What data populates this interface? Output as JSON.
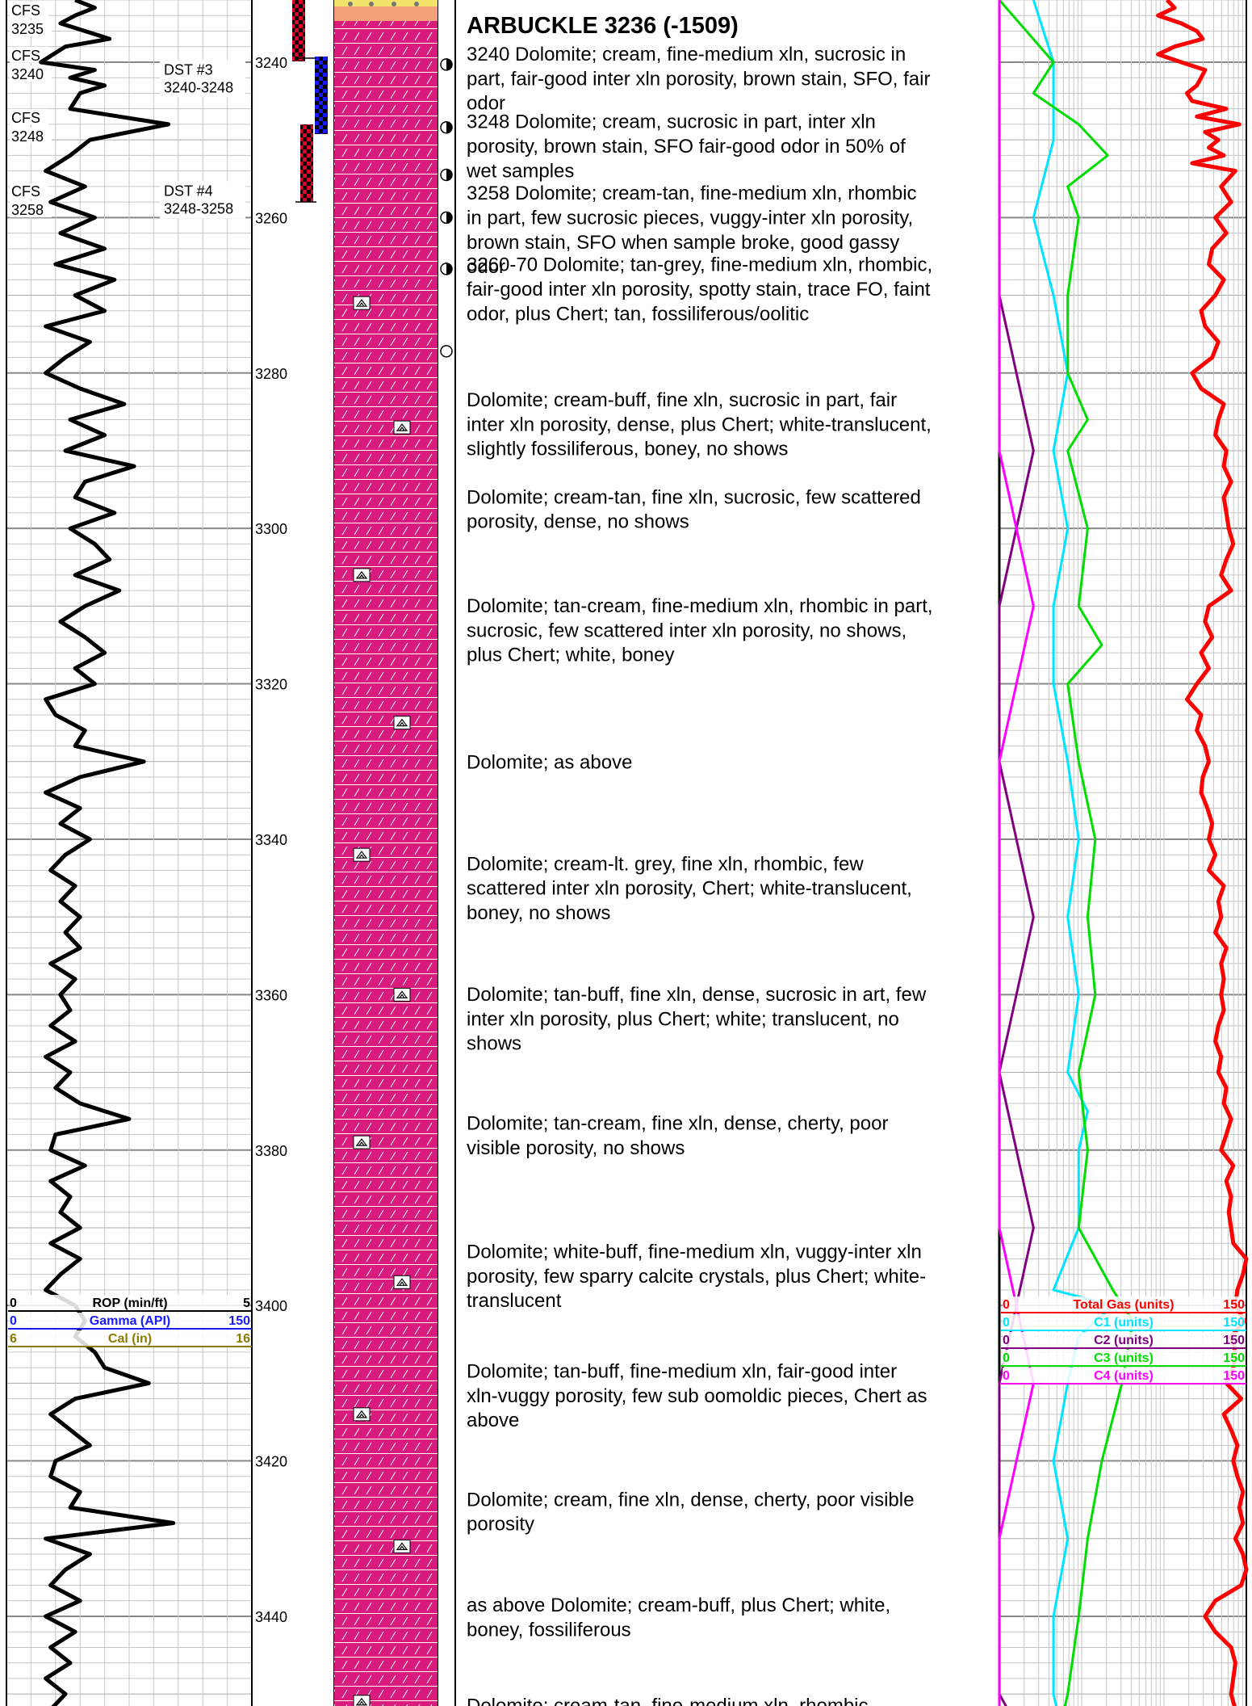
{
  "chart_data": {
    "type": "line",
    "depth_range": [
      3232,
      3458
    ],
    "depth_labels": [
      3240,
      3260,
      3280,
      3300,
      3320,
      3340,
      3360,
      3380,
      3400,
      3420,
      3440
    ],
    "samples": [
      {
        "text": "CFS\n3235",
        "depth": 3234.5
      },
      {
        "text": "CFS\n3240",
        "depth": 3240.3
      },
      {
        "text": "CFS\n3248",
        "depth": 3248.3
      },
      {
        "text": "CFS\n3258",
        "depth": 3257.8
      }
    ],
    "dst": [
      {
        "text": "DST #3\n3240-3248",
        "depth": 3241.8
      },
      {
        "text": "DST #4\n3248-3258",
        "depth": 3257.4
      }
    ],
    "formation": {
      "text": "ARBUCKLE 3236 (-1509)",
      "depth": 3235.2
    },
    "descriptions": [
      {
        "depth": 3239.8,
        "lines": [
          "3240 Dolomite; cream, fine-medium xln, sucrosic in",
          "part, fair-good inter xln porosity, brown stain, SFO, fair",
          "odor"
        ]
      },
      {
        "depth": 3248.5,
        "lines": [
          "3248 Dolomite; cream, sucrosic in part, inter xln",
          "porosity, brown stain, SFO fair-good odor in 50% of",
          "wet samples"
        ]
      },
      {
        "depth": 3257.7,
        "lines": [
          "3258 Dolomite; cream-tan, fine-medium xln, rhombic",
          "in part, few sucrosic pieces, vuggy-inter xln porosity,",
          "brown stain, SFO when sample broke, good gassy",
          "odor"
        ]
      },
      {
        "depth": 3266.9,
        "lines": [
          "3260-70 Dolomite; tan-grey, fine-medium xln, rhombic,",
          "fair-good inter xln porosity, spotty stain, trace FO, faint",
          "odor, plus Chert; tan, fossiliferous/oolitic"
        ]
      },
      {
        "depth": 3284.3,
        "lines": [
          "Dolomite; cream-buff, fine xln, sucrosic in part, fair",
          "inter xln porosity, dense, plus Chert; white-translucent,",
          "slightly fossiliferous, boney, no shows"
        ]
      },
      {
        "depth": 3296.8,
        "lines": [
          "Dolomite; cream-tan, fine xln, sucrosic, few scattered",
          "porosity, dense, no shows"
        ]
      },
      {
        "depth": 3310.8,
        "lines": [
          "Dolomite; tan-cream, fine-medium xln, rhombic in part,",
          "sucrosic, few scattered inter xln porosity, no shows,",
          "plus Chert; white, boney"
        ]
      },
      {
        "depth": 3330.9,
        "lines": [
          "Dolomite; as above"
        ]
      },
      {
        "depth": 3344.0,
        "lines": [
          "Dolomite; cream-lt. grey, fine xln, rhombic, few",
          "scattered inter xln porosity, Chert; white-translucent,",
          "boney, no shows"
        ]
      },
      {
        "depth": 3360.8,
        "lines": [
          "Dolomite; tan-buff, fine xln, dense, sucrosic in art, few",
          "inter xln porosity, plus Chert; white; translucent, no",
          "shows"
        ]
      },
      {
        "depth": 3377.4,
        "lines": [
          "Dolomite; tan-cream, fine xln, dense, cherty, poor",
          "visible porosity, no shows"
        ]
      },
      {
        "depth": 3393.9,
        "lines": [
          "Dolomite; white-buff, fine-medium xln, vuggy-inter xln",
          "porosity, few sparry calcite crystals, plus Chert; white-",
          "translucent"
        ]
      },
      {
        "depth": 3409.3,
        "lines": [
          "Dolomite; tan-buff, fine-medium xln, fair-good inter",
          "xln-vuggy porosity, few sub oomoldic pieces, Chert as",
          "above"
        ]
      },
      {
        "depth": 3425.8,
        "lines": [
          "Dolomite; cream, fine xln, dense, cherty, poor visible",
          "porosity"
        ]
      },
      {
        "depth": 3439.4,
        "lines": [
          "as above Dolomite; cream-buff, plus Chert; white,",
          "boney, fossiliferous"
        ]
      },
      {
        "depth": 3452.3,
        "lines": [
          "Dolomite; cream-tan, fine-medium xln, rhombic"
        ]
      }
    ],
    "left_legend": [
      {
        "min": "0",
        "name": "ROP (min/ft)",
        "max": "5",
        "color": "#000000"
      },
      {
        "min": "0",
        "name": "Gamma (API)",
        "max": "150",
        "color": "#1a1aff"
      },
      {
        "min": "6",
        "name": "Cal (in)",
        "max": "16",
        "color": "#8a7a00"
      }
    ],
    "right_legend": [
      {
        "min": "0",
        "name": "Total Gas (units)",
        "max": "150",
        "color": "#ff0000"
      },
      {
        "min": "0",
        "name": "C1 (units)",
        "max": "150",
        "color": "#00e5ff"
      },
      {
        "min": "0",
        "name": "C2 (units)",
        "max": "150",
        "color": "#800080"
      },
      {
        "min": "0",
        "name": "C3 (units)",
        "max": "150",
        "color": "#00dd00"
      },
      {
        "min": "0",
        "name": "C4 (units)",
        "max": "150",
        "color": "#ff00ff"
      }
    ],
    "series": [
      {
        "name": "ROP (min/ft)",
        "color": "#000000",
        "xlim": [
          0,
          5
        ],
        "depth": [
          3232,
          3233,
          3234,
          3235,
          3237,
          3238,
          3240,
          3241,
          3242,
          3243,
          3244,
          3246,
          3247,
          3248,
          3250,
          3252,
          3254,
          3256,
          3258,
          3260,
          3262,
          3264,
          3266,
          3268,
          3270,
          3272,
          3274,
          3276,
          3278,
          3280,
          3282,
          3284,
          3286,
          3288,
          3290,
          3292,
          3294,
          3296,
          3298,
          3300,
          3302,
          3304,
          3306,
          3308,
          3310,
          3312,
          3314,
          3316,
          3318,
          3320,
          3322,
          3324,
          3326,
          3328,
          3330,
          3332,
          3334,
          3336,
          3338,
          3340,
          3342,
          3344,
          3346,
          3348,
          3350,
          3352,
          3354,
          3356,
          3358,
          3360,
          3362,
          3364,
          3366,
          3368,
          3370,
          3372,
          3374,
          3376,
          3378,
          3380,
          3382,
          3384,
          3386,
          3388,
          3390,
          3392,
          3394,
          3396,
          3398,
          3400,
          3402,
          3404,
          3406,
          3408,
          3410,
          3412,
          3414,
          3416,
          3418,
          3420,
          3422,
          3424,
          3426,
          3428,
          3430,
          3432,
          3434,
          3436,
          3438,
          3440,
          3442,
          3444,
          3446,
          3448,
          3450,
          3452,
          3454,
          3456,
          3458
        ],
        "values": [
          1.4,
          1.8,
          1.4,
          1.1,
          2.1,
          1.2,
          0.7,
          1.8,
          1.3,
          2.0,
          1.5,
          1.3,
          2.3,
          3.3,
          1.7,
          1.3,
          0.8,
          1.6,
          0.9,
          1.8,
          1.1,
          2.0,
          1.0,
          2.2,
          1.4,
          2.0,
          0.8,
          1.7,
          1.2,
          0.8,
          1.5,
          2.4,
          1.3,
          2.0,
          1.2,
          2.6,
          1.6,
          1.4,
          2.2,
          1.3,
          1.8,
          2.1,
          1.4,
          2.3,
          1.6,
          1.1,
          1.6,
          2.0,
          1.4,
          1.8,
          0.8,
          1.0,
          1.6,
          1.4,
          2.8,
          1.5,
          0.8,
          1.5,
          1.1,
          1.7,
          1.2,
          0.9,
          1.4,
          1.1,
          1.5,
          1.2,
          1.5,
          0.9,
          1.4,
          1.1,
          1.3,
          0.9,
          1.4,
          0.8,
          1.3,
          1.0,
          1.5,
          2.5,
          1.0,
          0.9,
          1.6,
          0.9,
          1.3,
          1.1,
          1.5,
          0.9,
          1.5,
          1.1,
          0.8,
          1.4,
          1.6,
          1.4,
          1.8,
          2.0,
          2.9,
          1.4,
          0.9,
          1.3,
          1.7,
          1.0,
          0.9,
          1.5,
          1.3,
          3.4,
          0.8,
          1.7,
          1.2,
          0.9,
          1.5,
          0.8,
          1.4,
          0.9,
          1.3,
          0.8,
          1.2,
          0.9,
          1.3,
          0.9,
          1.2
        ]
      },
      {
        "name": "Total Gas (units)",
        "color": "#ff0000",
        "xlim": [
          0,
          150
        ],
        "depth": [
          3232,
          3233,
          3234,
          3235,
          3236,
          3237,
          3238,
          3239,
          3240,
          3241,
          3242,
          3243,
          3244,
          3245,
          3246,
          3247,
          3248,
          3249,
          3250,
          3251,
          3252,
          3253,
          3254,
          3256,
          3258,
          3260,
          3262,
          3264,
          3266,
          3268,
          3270,
          3272,
          3274,
          3276,
          3278,
          3280,
          3282,
          3284,
          3286,
          3288,
          3290,
          3292,
          3294,
          3296,
          3298,
          3300,
          3302,
          3304,
          3306,
          3308,
          3310,
          3312,
          3314,
          3316,
          3318,
          3320,
          3322,
          3324,
          3326,
          3328,
          3330,
          3332,
          3334,
          3336,
          3338,
          3340,
          3342,
          3344,
          3346,
          3348,
          3350,
          3352,
          3354,
          3356,
          3358,
          3360,
          3362,
          3364,
          3366,
          3368,
          3370,
          3372,
          3374,
          3376,
          3378,
          3380,
          3382,
          3384,
          3386,
          3388,
          3390,
          3392,
          3394,
          3396,
          3398,
          3400,
          3402,
          3404,
          3406,
          3408,
          3410,
          3412,
          3414,
          3416,
          3418,
          3420,
          3422,
          3424,
          3426,
          3428,
          3430,
          3432,
          3434,
          3436,
          3438,
          3440,
          3442,
          3444,
          3446,
          3448,
          3450,
          3452,
          3454,
          3456,
          3458
        ],
        "values": [
          30,
          35,
          25,
          40,
          55,
          62,
          35,
          25,
          40,
          65,
          60,
          55,
          45,
          50,
          100,
          55,
          130,
          65,
          85,
          70,
          95,
          50,
          120,
          90,
          110,
          80,
          100,
          75,
          70,
          95,
          80,
          60,
          65,
          85,
          75,
          50,
          60,
          95,
          85,
          80,
          100,
          95,
          110,
          95,
          100,
          105,
          115,
          100,
          90,
          110,
          70,
          65,
          75,
          60,
          70,
          55,
          45,
          60,
          55,
          65,
          70,
          62,
          60,
          68,
          75,
          70,
          80,
          70,
          95,
          85,
          90,
          80,
          100,
          90,
          95,
          90,
          95,
          85,
          80,
          90,
          85,
          100,
          95,
          110,
          100,
          90,
          115,
          100,
          110,
          105,
          110,
          115,
          150,
          140,
          125,
          120,
          145,
          110,
          120,
          115,
          100,
          135,
          95,
          110,
          125,
          115,
          125,
          140,
          130,
          140,
          120,
          140,
          150,
          135,
          80,
          65,
          80,
          110,
          120,
          115,
          110,
          120,
          100,
          105,
          95
        ]
      },
      {
        "name": "C1 (units)",
        "color": "#00e5ff",
        "xlim": [
          0,
          150
        ],
        "depth": [
          3232,
          3240,
          3250,
          3260,
          3270,
          3280,
          3290,
          3300,
          3310,
          3320,
          3330,
          3340,
          3350,
          3360,
          3370,
          3375,
          3380,
          3390,
          3398,
          3400,
          3404,
          3410,
          3420,
          3430,
          3440,
          3450,
          3458
        ],
        "values": [
          2,
          3,
          3,
          2,
          3,
          4,
          3,
          4,
          3,
          3,
          4,
          5,
          4,
          5,
          4,
          6,
          5,
          5,
          3,
          10,
          5,
          4,
          3,
          4,
          3,
          3,
          4
        ]
      },
      {
        "name": "C2 (units)",
        "color": "#800080",
        "xlim": [
          0,
          150
        ],
        "depth": [
          3232,
          3250,
          3270,
          3290,
          3310,
          3330,
          3350,
          3370,
          3390,
          3410,
          3430,
          3450,
          3458
        ],
        "values": [
          1,
          1,
          1,
          2,
          1,
          1,
          2,
          1,
          2,
          1,
          1,
          1,
          2
        ]
      },
      {
        "name": "C3 (units)",
        "color": "#00dd00",
        "xlim": [
          0,
          150
        ],
        "depth": [
          3232,
          3240,
          3244,
          3248,
          3252,
          3256,
          3260,
          3270,
          3280,
          3286,
          3290,
          3300,
          3310,
          3315,
          3320,
          3330,
          3340,
          3350,
          3360,
          3370,
          3380,
          3390,
          3398,
          3402,
          3410,
          3420,
          3430,
          3440,
          3450,
          3458
        ],
        "values": [
          1,
          3,
          2,
          5,
          9,
          4,
          5,
          4,
          4,
          6,
          4,
          6,
          5,
          8,
          4,
          5,
          7,
          6,
          7,
          5,
          6,
          5,
          10,
          15,
          12,
          8,
          6,
          5,
          4,
          3
        ]
      },
      {
        "name": "C4 (units)",
        "color": "#ff00ff",
        "xlim": [
          0,
          150
        ],
        "depth": [
          3232,
          3250,
          3270,
          3290,
          3310,
          3330,
          3350,
          3370,
          3390,
          3410,
          3430,
          3450,
          3458
        ],
        "values": [
          0,
          1,
          1,
          1,
          2,
          1,
          1,
          1,
          1,
          2,
          1,
          1,
          1
        ]
      }
    ]
  }
}
